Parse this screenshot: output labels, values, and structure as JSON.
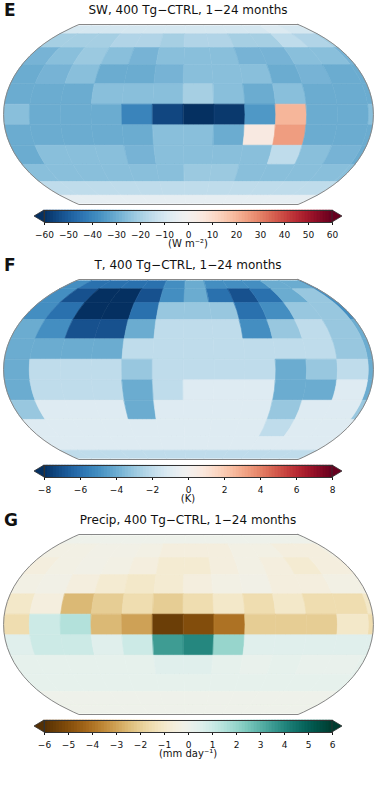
{
  "chart_data": [
    {
      "type": "heatmap",
      "panel": "E",
      "title": "SW, 400 Tg−CTRL, 1−24 months",
      "lon": [
        15,
        45,
        75,
        105,
        135,
        165,
        -165,
        -135,
        -105,
        -75,
        -45,
        -15
      ],
      "lat": [
        75,
        60,
        45,
        30,
        15,
        0,
        -15,
        -30,
        -45,
        -60,
        -75
      ],
      "values": [
        [
          -10,
          -10,
          -10,
          -10,
          -10,
          -10,
          -10,
          -10,
          -10,
          -10,
          -8,
          -10
        ],
        [
          -20,
          -20,
          -20,
          -18,
          -18,
          -20,
          -18,
          -18,
          -20,
          -20,
          -15,
          -18
        ],
        [
          -28,
          -25,
          -22,
          -25,
          -28,
          -25,
          -25,
          -25,
          -28,
          -28,
          -25,
          -25
        ],
        [
          -30,
          -28,
          -25,
          -30,
          -30,
          -28,
          -25,
          -25,
          -25,
          -30,
          -28,
          -30
        ],
        [
          -30,
          -30,
          -30,
          -25,
          -25,
          -25,
          -20,
          -25,
          -30,
          -25,
          -30,
          -30
        ],
        [
          -25,
          -30,
          -30,
          -30,
          -40,
          -55,
          -60,
          -58,
          -35,
          20,
          -30,
          -30
        ],
        [
          -30,
          -30,
          -30,
          -30,
          -30,
          -25,
          -25,
          -30,
          5,
          25,
          -30,
          -30
        ],
        [
          -30,
          -25,
          -25,
          -25,
          -28,
          -25,
          -25,
          -25,
          -25,
          -15,
          -25,
          -28
        ],
        [
          -25,
          -25,
          -25,
          -25,
          -25,
          -25,
          -22,
          -22,
          -25,
          -25,
          -25,
          -25
        ],
        [
          -15,
          -15,
          -15,
          -15,
          -15,
          -15,
          -15,
          -15,
          -15,
          -15,
          -15,
          -15
        ],
        [
          -5,
          -5,
          -5,
          -5,
          -5,
          -5,
          -5,
          -5,
          -5,
          -5,
          -5,
          -5
        ]
      ],
      "colorbar": {
        "range": [
          -60,
          60
        ],
        "ticks": [
          -60,
          -50,
          -40,
          -30,
          -20,
          -10,
          0,
          10,
          20,
          30,
          40,
          50,
          60
        ],
        "label": "(W m⁻²)"
      }
    },
    {
      "type": "heatmap",
      "panel": "F",
      "title": "T, 400 Tg−CTRL, 1−24 months",
      "lon": [
        15,
        45,
        75,
        105,
        135,
        165,
        -165,
        -135,
        -105,
        -75,
        -45,
        -15
      ],
      "lat": [
        75,
        60,
        45,
        30,
        15,
        0,
        -15,
        -30,
        -45,
        -60,
        -75
      ],
      "values": [
        [
          -5,
          -6,
          -6,
          -6,
          -6,
          -5,
          -4,
          -5,
          -5,
          -5,
          -4,
          -4
        ],
        [
          -5,
          -7,
          -8,
          -8,
          -7,
          -5,
          -4,
          -6,
          -7,
          -6,
          -4,
          -3
        ],
        [
          -5,
          -6,
          -8,
          -8,
          -6,
          -3,
          -3,
          -3,
          -6,
          -5,
          -3,
          -3
        ],
        [
          -4,
          -5,
          -7,
          -7,
          -4,
          -2,
          -2,
          -2,
          -5,
          -3,
          -2,
          -3
        ],
        [
          -4,
          -4,
          -4,
          -4,
          -2,
          -2,
          -2,
          -2,
          -2,
          -2,
          -2,
          -3
        ],
        [
          -4,
          -2,
          -2,
          -2,
          -3,
          -2,
          -2,
          -2,
          -2,
          -4,
          -3,
          -2
        ],
        [
          -4,
          -2,
          -2,
          -2,
          -4,
          -2,
          -1,
          -1,
          -1,
          -4,
          -4,
          -1
        ],
        [
          -3,
          -1,
          -1,
          -1,
          -4,
          -1,
          -1,
          -1,
          -1,
          -3,
          -1,
          -1
        ],
        [
          -1,
          -1,
          -1,
          -1,
          -1,
          -1,
          -1,
          -1,
          -1,
          -2,
          -1,
          -1
        ],
        [
          -1,
          -1,
          -1,
          -1,
          -1,
          -1,
          -1,
          -1,
          -1,
          -1,
          -1,
          -1
        ],
        [
          -2,
          -2,
          -2,
          -2,
          -2,
          -2,
          -2,
          -2,
          -2,
          -2,
          -2,
          -2
        ]
      ],
      "colorbar": {
        "range": [
          -8,
          8
        ],
        "ticks": [
          -8,
          -6,
          -4,
          -2,
          0,
          2,
          4,
          6,
          8
        ],
        "label": "(K)"
      }
    },
    {
      "type": "heatmap",
      "panel": "G",
      "title": "Precip, 400 Tg−CTRL, 1−24 months",
      "lon": [
        15,
        45,
        75,
        105,
        135,
        165,
        -165,
        -135,
        -105,
        -75,
        -45,
        -15
      ],
      "lat": [
        75,
        60,
        45,
        30,
        15,
        0,
        -15,
        -30,
        -45,
        -60,
        -75
      ],
      "values": [
        [
          0,
          0,
          0,
          0,
          0,
          0,
          0,
          0,
          0,
          0,
          0,
          0
        ],
        [
          -0.3,
          -0.3,
          -0.2,
          -0.2,
          -0.3,
          -0.5,
          -0.5,
          -0.5,
          -0.3,
          -0.3,
          -0.5,
          -0.5
        ],
        [
          -0.5,
          -0.3,
          -0.2,
          -0.3,
          -0.5,
          -0.8,
          -0.8,
          -0.5,
          -0.3,
          -0.5,
          -0.8,
          -0.5
        ],
        [
          -0.3,
          -0.2,
          -0.5,
          -0.8,
          -1,
          -0.8,
          -0.5,
          -0.3,
          -0.2,
          -0.5,
          -0.5,
          -0.3
        ],
        [
          -1,
          -0.5,
          -2.5,
          -2,
          -1.5,
          -2,
          -1.5,
          -1,
          -1.5,
          -1,
          -1.5,
          -1.5
        ],
        [
          -1.5,
          1,
          1.5,
          -2.5,
          -3,
          -5.5,
          -5,
          -4,
          -2,
          -2,
          -2,
          -1
        ],
        [
          0.5,
          1,
          1,
          0.5,
          1,
          3.5,
          4,
          2,
          0.5,
          0.5,
          0.5,
          0.5
        ],
        [
          0.3,
          0.3,
          0.3,
          0.3,
          0.3,
          0.5,
          0.5,
          0.3,
          0.2,
          0.3,
          0.2,
          0.2
        ],
        [
          0.3,
          0.3,
          0.3,
          0.3,
          0.3,
          0.3,
          0.3,
          0.3,
          0.3,
          0.3,
          0.3,
          0.3
        ],
        [
          0,
          0,
          0,
          0,
          0,
          0,
          0,
          0,
          0,
          0,
          0,
          0
        ],
        [
          0,
          0,
          0,
          0,
          0,
          0,
          0,
          0,
          0,
          0,
          0,
          0
        ]
      ],
      "colorbar": {
        "range": [
          -6,
          6
        ],
        "ticks": [
          -6,
          -5,
          -4,
          -3,
          -2,
          -1,
          0,
          1,
          2,
          3,
          4,
          5,
          6
        ],
        "label": "(mm day⁻¹)"
      }
    }
  ]
}
